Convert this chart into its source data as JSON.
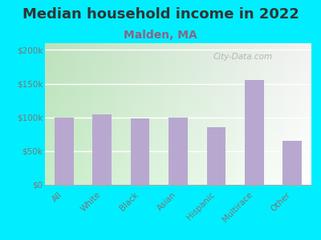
{
  "title": "Median household income in 2022",
  "subtitle": "Malden, MA",
  "categories": [
    "All",
    "White",
    "Black",
    "Asian",
    "Hispanic",
    "Multirace",
    "Other"
  ],
  "values": [
    100000,
    104000,
    99000,
    100000,
    85000,
    155000,
    65000
  ],
  "bar_color": "#b8a8d0",
  "background_outer": "#00eeff",
  "title_color": "#333333",
  "title_fontsize": 13,
  "subtitle_fontsize": 10,
  "subtitle_color": "#886688",
  "tick_label_color": "#777777",
  "ylim": [
    0,
    210000
  ],
  "yticks": [
    0,
    50000,
    100000,
    150000,
    200000
  ],
  "ytick_labels": [
    "$0",
    "$50k",
    "$100k",
    "$150k",
    "$200k"
  ],
  "watermark": "City-Data.com",
  "chart_bg_left": "#c8e8c8",
  "chart_bg_right": "#f0f8f0"
}
